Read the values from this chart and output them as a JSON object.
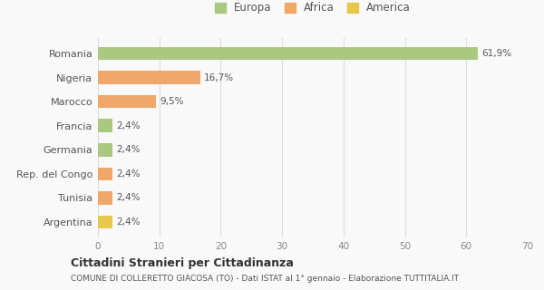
{
  "categories": [
    "Argentina",
    "Tunisia",
    "Rep. del Congo",
    "Germania",
    "Francia",
    "Marocco",
    "Nigeria",
    "Romania"
  ],
  "values": [
    2.4,
    2.4,
    2.4,
    2.4,
    2.4,
    9.5,
    16.7,
    61.9
  ],
  "labels": [
    "2,4%",
    "2,4%",
    "2,4%",
    "2,4%",
    "2,4%",
    "9,5%",
    "16,7%",
    "61,9%"
  ],
  "colors": [
    "#e8c84a",
    "#f0a868",
    "#f0a868",
    "#a8c97f",
    "#a8c97f",
    "#f0a868",
    "#f0a868",
    "#a8c97f"
  ],
  "legend_labels": [
    "Europa",
    "Africa",
    "America"
  ],
  "legend_colors": [
    "#a8c97f",
    "#f0a868",
    "#e8c84a"
  ],
  "xlim": [
    0,
    70
  ],
  "xticks": [
    0,
    10,
    20,
    30,
    40,
    50,
    60,
    70
  ],
  "title_main": "Cittadini Stranieri per Cittadinanza",
  "title_sub": "COMUNE DI COLLERETTO GIACOSA (TO) - Dati ISTAT al 1° gennaio - Elaborazione TUTTITALIA.IT",
  "background_color": "#f9f9f9",
  "grid_color": "#dddddd"
}
